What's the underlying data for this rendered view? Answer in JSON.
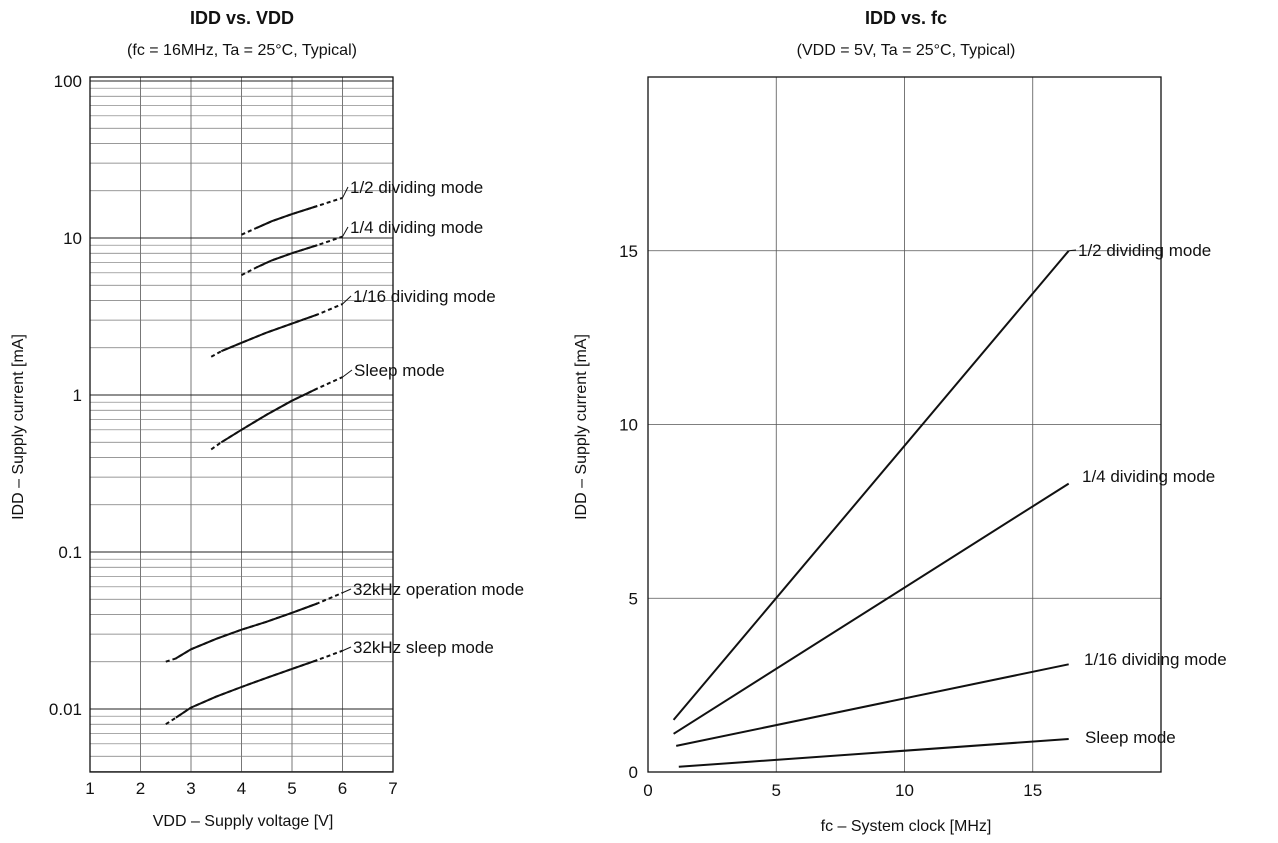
{
  "chart_data": [
    {
      "type": "line",
      "title": "IDD vs. VDD",
      "subtitle": "(fc = 16MHz, Ta = 25°C, Typical)",
      "xlabel": "VDD – Supply voltage [V]",
      "ylabel": "IDD – Supply current [mA]",
      "x_ticks": [
        "1",
        "2",
        "3",
        "4",
        "5",
        "6",
        "7"
      ],
      "y_ticks": [
        "0.01",
        "0.1",
        "1",
        "10",
        "100"
      ],
      "xlim": [
        1,
        7
      ],
      "ylim": [
        0.004,
        100
      ],
      "y_scale": "log",
      "grid": true,
      "series": [
        {
          "name": "1/2 dividing mode",
          "x": [
            4.0,
            4.3,
            4.6,
            5.0,
            5.5,
            6.0
          ],
          "y": [
            10.5,
            11.6,
            12.8,
            14.2,
            16.0,
            18.0
          ]
        },
        {
          "name": "1/4 dividing mode",
          "x": [
            4.0,
            4.3,
            4.6,
            5.0,
            5.5,
            6.0
          ],
          "y": [
            5.8,
            6.5,
            7.2,
            8.0,
            9.0,
            10.2
          ]
        },
        {
          "name": "1/16 dividing mode",
          "x": [
            3.4,
            3.6,
            4.0,
            4.5,
            5.0,
            5.5,
            6.0
          ],
          "y": [
            1.75,
            1.9,
            2.15,
            2.5,
            2.85,
            3.25,
            3.8
          ]
        },
        {
          "name": "Sleep mode",
          "x": [
            3.4,
            3.6,
            4.0,
            4.5,
            5.0,
            5.5,
            6.0
          ],
          "y": [
            0.45,
            0.5,
            0.6,
            0.75,
            0.92,
            1.1,
            1.3
          ]
        },
        {
          "name": "32kHz operation mode",
          "x": [
            2.5,
            2.7,
            3.0,
            3.5,
            4.0,
            4.5,
            5.0,
            5.5,
            6.0
          ],
          "y": [
            0.02,
            0.021,
            0.024,
            0.028,
            0.032,
            0.036,
            0.041,
            0.047,
            0.055
          ]
        },
        {
          "name": "32kHz sleep mode",
          "x": [
            2.5,
            2.7,
            3.0,
            3.5,
            4.0,
            4.5,
            5.0,
            5.5,
            6.0
          ],
          "y": [
            0.008,
            0.0088,
            0.0102,
            0.012,
            0.0138,
            0.0158,
            0.018,
            0.0205,
            0.0235
          ]
        }
      ]
    },
    {
      "type": "line",
      "title": "IDD vs. fc",
      "subtitle": "(VDD = 5V, Ta = 25°C, Typical)",
      "xlabel": "fc – System clock [MHz]",
      "ylabel": "IDD – Supply current [mA]",
      "x_ticks": [
        "0",
        "5",
        "10",
        "15"
      ],
      "y_ticks": [
        "0",
        "5",
        "10",
        "15"
      ],
      "xlim": [
        0,
        20
      ],
      "ylim": [
        0,
        20
      ],
      "grid": true,
      "series": [
        {
          "name": "1/2 dividing mode",
          "x": [
            1.0,
            16.4
          ],
          "y": [
            1.5,
            15.0
          ]
        },
        {
          "name": "1/4 dividing mode",
          "x": [
            1.0,
            16.4
          ],
          "y": [
            1.1,
            8.3
          ]
        },
        {
          "name": "1/16 dividing mode",
          "x": [
            1.1,
            16.4
          ],
          "y": [
            0.75,
            3.1
          ]
        },
        {
          "name": "Sleep mode",
          "x": [
            1.2,
            16.4
          ],
          "y": [
            0.15,
            0.95
          ]
        }
      ]
    }
  ]
}
